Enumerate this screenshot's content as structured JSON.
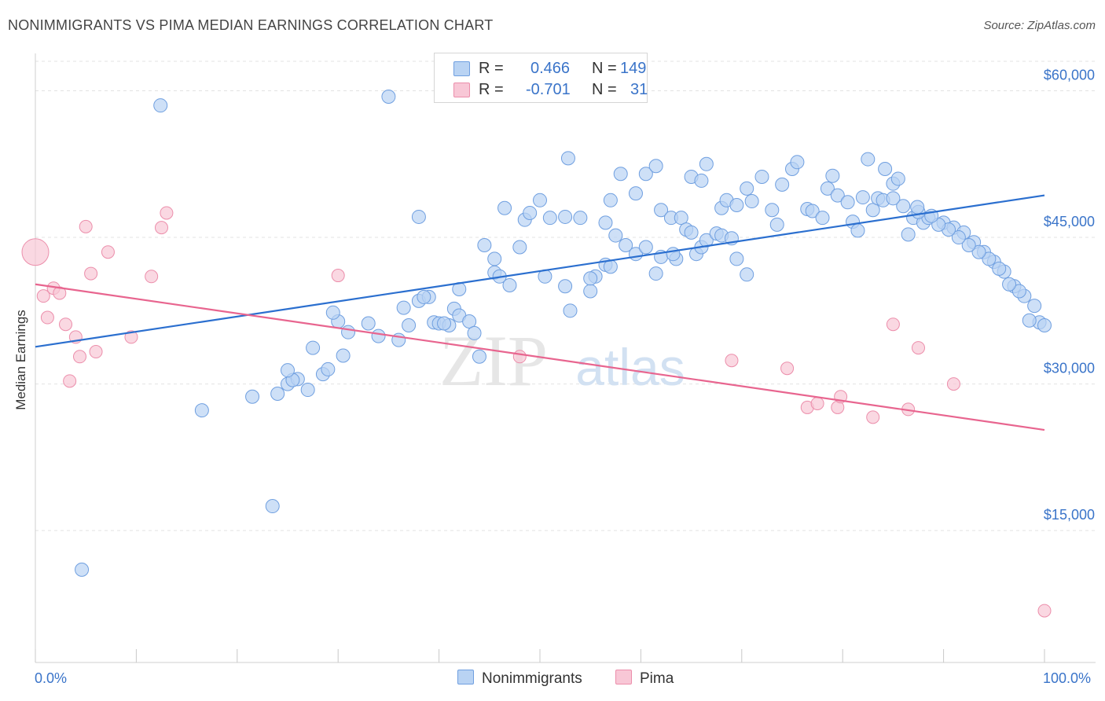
{
  "title": "NONIMMIGRANTS VS PIMA MEDIAN EARNINGS CORRELATION CHART",
  "source": "Source: ZipAtlas.com",
  "watermark": {
    "zip": "ZIP",
    "atlas": "atlas"
  },
  "legend": {
    "r_label": "R =",
    "n_label": "N =",
    "rows": [
      {
        "r": "0.466",
        "n": "149"
      },
      {
        "r": "-0.701",
        "n": "31"
      }
    ]
  },
  "bottom_legend": [
    "Nonimmigrants",
    "Pima"
  ],
  "colors": {
    "nonimmigrants_fill": "#b9d3f3",
    "nonimmigrants_stroke": "#6f9fe0",
    "nonimmigrants_line": "#2b6fcf",
    "pima_fill": "#f8c7d6",
    "pima_stroke": "#ec8eab",
    "pima_line": "#e8658f",
    "tick_label": "#3a74c9"
  },
  "chart_data": {
    "type": "scatter",
    "title": "NONIMMIGRANTS VS PIMA MEDIAN EARNINGS CORRELATION CHART",
    "xlabel": "",
    "ylabel": "Median Earnings",
    "xlim": [
      0,
      100
    ],
    "ylim": [
      1500,
      63500
    ],
    "x_tick_labels": [
      "0.0%",
      "100.0%"
    ],
    "y_ticks": [
      {
        "value": 15000,
        "label": "$15,000"
      },
      {
        "value": 30000,
        "label": "$30,000"
      },
      {
        "value": 45000,
        "label": "$45,000"
      },
      {
        "value": 60000,
        "label": "$60,000"
      }
    ],
    "grid": "horizontal dashed",
    "legend_position": "top-center",
    "series": [
      {
        "name": "Nonimmigrants",
        "trend": {
          "x": [
            0,
            100
          ],
          "y": [
            33800,
            49300
          ]
        },
        "points": [
          [
            12.4,
            58500
          ],
          [
            35,
            59400
          ],
          [
            4.6,
            11000
          ],
          [
            23.5,
            17500
          ],
          [
            16.5,
            27300
          ],
          [
            21.5,
            28700
          ],
          [
            24,
            29000
          ],
          [
            25,
            30000
          ],
          [
            26,
            30500
          ],
          [
            25.5,
            30400
          ],
          [
            27,
            29400
          ],
          [
            28.5,
            31000
          ],
          [
            29,
            31500
          ],
          [
            25,
            31400
          ],
          [
            27.5,
            33700
          ],
          [
            30.5,
            32900
          ],
          [
            31,
            35300
          ],
          [
            30,
            36400
          ],
          [
            29.5,
            37300
          ],
          [
            33,
            36200
          ],
          [
            34,
            34900
          ],
          [
            36,
            34500
          ],
          [
            37,
            36000
          ],
          [
            36.5,
            37800
          ],
          [
            38,
            38500
          ],
          [
            39,
            38900
          ],
          [
            38.5,
            38900
          ],
          [
            39.5,
            36300
          ],
          [
            40,
            36200
          ],
          [
            41,
            36000
          ],
          [
            40.5,
            36200
          ],
          [
            41.5,
            37700
          ],
          [
            42,
            37000
          ],
          [
            43,
            36400
          ],
          [
            43.5,
            35200
          ],
          [
            44,
            32800
          ],
          [
            45.5,
            42800
          ],
          [
            45.5,
            41400
          ],
          [
            46,
            41000
          ],
          [
            47,
            40100
          ],
          [
            50.5,
            41000
          ],
          [
            52.5,
            40000
          ],
          [
            53,
            37500
          ],
          [
            55,
            39500
          ],
          [
            55.5,
            41000
          ],
          [
            55,
            40800
          ],
          [
            56.5,
            42200
          ],
          [
            57,
            42000
          ],
          [
            57.5,
            45200
          ],
          [
            58.5,
            44200
          ],
          [
            59.5,
            43300
          ],
          [
            60.5,
            44000
          ],
          [
            61.5,
            41300
          ],
          [
            62,
            43000
          ],
          [
            63.5,
            42800
          ],
          [
            65.5,
            43300
          ],
          [
            66,
            44000
          ],
          [
            66.5,
            44700
          ],
          [
            67.5,
            45400
          ],
          [
            68,
            45200
          ],
          [
            69,
            44900
          ],
          [
            69.5,
            42800
          ],
          [
            70.5,
            41200
          ],
          [
            48,
            44000
          ],
          [
            48.5,
            46800
          ],
          [
            49,
            47500
          ],
          [
            50,
            48800
          ],
          [
            51,
            47000
          ],
          [
            52.5,
            47100
          ],
          [
            54,
            47000
          ],
          [
            56.5,
            46500
          ],
          [
            57,
            48800
          ],
          [
            59.5,
            49500
          ],
          [
            60.5,
            51500
          ],
          [
            61.5,
            52300
          ],
          [
            62,
            47800
          ],
          [
            63,
            47000
          ],
          [
            64,
            47000
          ],
          [
            64.5,
            45800
          ],
          [
            65,
            51200
          ],
          [
            66,
            50800
          ],
          [
            66.5,
            52500
          ],
          [
            68,
            48000
          ],
          [
            68.5,
            48800
          ],
          [
            69.5,
            48300
          ],
          [
            70.5,
            50000
          ],
          [
            71,
            48700
          ],
          [
            72,
            51200
          ],
          [
            73,
            47800
          ],
          [
            73.5,
            46300
          ],
          [
            74,
            50400
          ],
          [
            75,
            52000
          ],
          [
            75.5,
            52700
          ],
          [
            76.5,
            47900
          ],
          [
            77,
            47700
          ],
          [
            78,
            47000
          ],
          [
            78.5,
            50000
          ],
          [
            79,
            51300
          ],
          [
            79.5,
            49300
          ],
          [
            80.5,
            48600
          ],
          [
            81,
            46600
          ],
          [
            81.5,
            45700
          ],
          [
            82,
            49100
          ],
          [
            82.5,
            53000
          ],
          [
            83,
            47800
          ],
          [
            83.5,
            49000
          ],
          [
            84,
            48800
          ],
          [
            85,
            50500
          ],
          [
            85.5,
            51000
          ],
          [
            86,
            48200
          ],
          [
            87,
            47000
          ],
          [
            88,
            46500
          ],
          [
            88.5,
            47000
          ],
          [
            90,
            46500
          ],
          [
            91,
            46000
          ],
          [
            92,
            45500
          ],
          [
            93,
            44500
          ],
          [
            94,
            43500
          ],
          [
            95,
            42500
          ],
          [
            96,
            41500
          ],
          [
            97,
            40000
          ],
          [
            98,
            39000
          ],
          [
            99,
            38000
          ],
          [
            99.5,
            36300
          ],
          [
            100,
            36000
          ],
          [
            98.5,
            36500
          ],
          [
            97.5,
            39500
          ],
          [
            96.5,
            40200
          ],
          [
            95.5,
            41800
          ],
          [
            94.5,
            42800
          ],
          [
            93.5,
            43500
          ],
          [
            92.5,
            44200
          ],
          [
            91.5,
            45000
          ],
          [
            90.5,
            45800
          ],
          [
            89.5,
            46300
          ],
          [
            88.8,
            47200
          ],
          [
            87.5,
            47600
          ],
          [
            86.5,
            45300
          ],
          [
            85,
            49000
          ],
          [
            84.2,
            52000
          ],
          [
            87.4,
            48100
          ],
          [
            65,
            45500
          ],
          [
            63.2,
            43300
          ],
          [
            58,
            51500
          ],
          [
            44.5,
            44200
          ],
          [
            46.5,
            48000
          ],
          [
            42,
            39700
          ],
          [
            38,
            47100
          ],
          [
            52.8,
            53100
          ]
        ]
      },
      {
        "name": "Pima",
        "trend": {
          "x": [
            0,
            100
          ],
          "y": [
            40200,
            25300
          ]
        },
        "points": [
          [
            0,
            43500
          ],
          [
            0.8,
            39000
          ],
          [
            1.2,
            36800
          ],
          [
            1.8,
            39800
          ],
          [
            2.4,
            39300
          ],
          [
            3,
            36100
          ],
          [
            3.4,
            30300
          ],
          [
            4,
            34800
          ],
          [
            4.4,
            32800
          ],
          [
            5,
            46100
          ],
          [
            5.5,
            41300
          ],
          [
            6,
            33300
          ],
          [
            7.2,
            43500
          ],
          [
            9.5,
            34800
          ],
          [
            11.5,
            41000
          ],
          [
            12.5,
            46000
          ],
          [
            13,
            47500
          ],
          [
            30,
            41100
          ],
          [
            48,
            32800
          ],
          [
            69,
            32400
          ],
          [
            74.5,
            31600
          ],
          [
            76.5,
            27600
          ],
          [
            77.5,
            28000
          ],
          [
            79.5,
            27600
          ],
          [
            79.8,
            28700
          ],
          [
            83,
            26600
          ],
          [
            85,
            36100
          ],
          [
            86.5,
            27400
          ],
          [
            87.5,
            33700
          ],
          [
            91,
            30000
          ],
          [
            100,
            6800
          ]
        ]
      }
    ]
  }
}
